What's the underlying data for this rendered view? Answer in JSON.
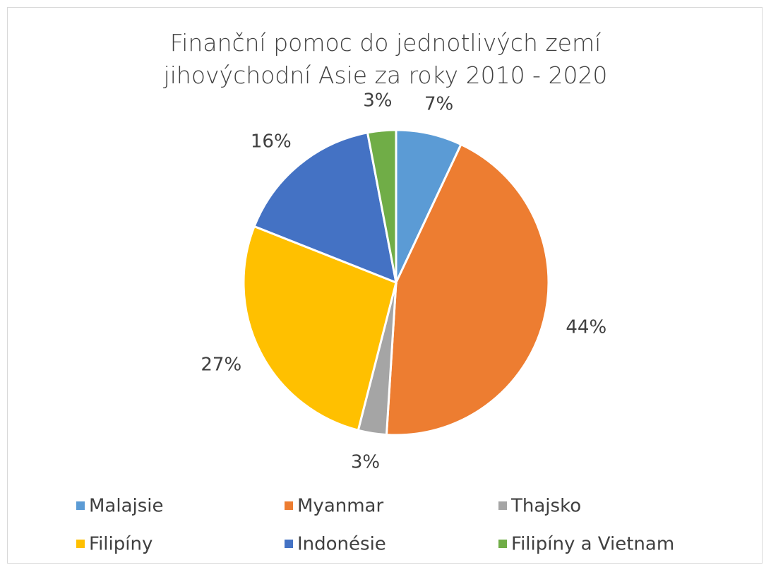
{
  "chart_data": {
    "type": "pie",
    "title": "Finanční pomoc do jednotlivých zemí jihovýchodní Asie za roky 2010 - 2020",
    "categories": [
      "Malajsie",
      "Myanmar",
      "Thajsko",
      "Filipíny",
      "Indonésie",
      "Filipíny a Vietnam"
    ],
    "values": [
      7,
      44,
      3,
      27,
      16,
      3
    ],
    "value_labels": [
      "7%",
      "44%",
      "3%",
      "27%",
      "16%",
      "3%"
    ],
    "colors": [
      "#5b9bd5",
      "#ed7d31",
      "#a5a5a5",
      "#ffc000",
      "#4472c4",
      "#70ad47"
    ],
    "legend": "bottom"
  }
}
